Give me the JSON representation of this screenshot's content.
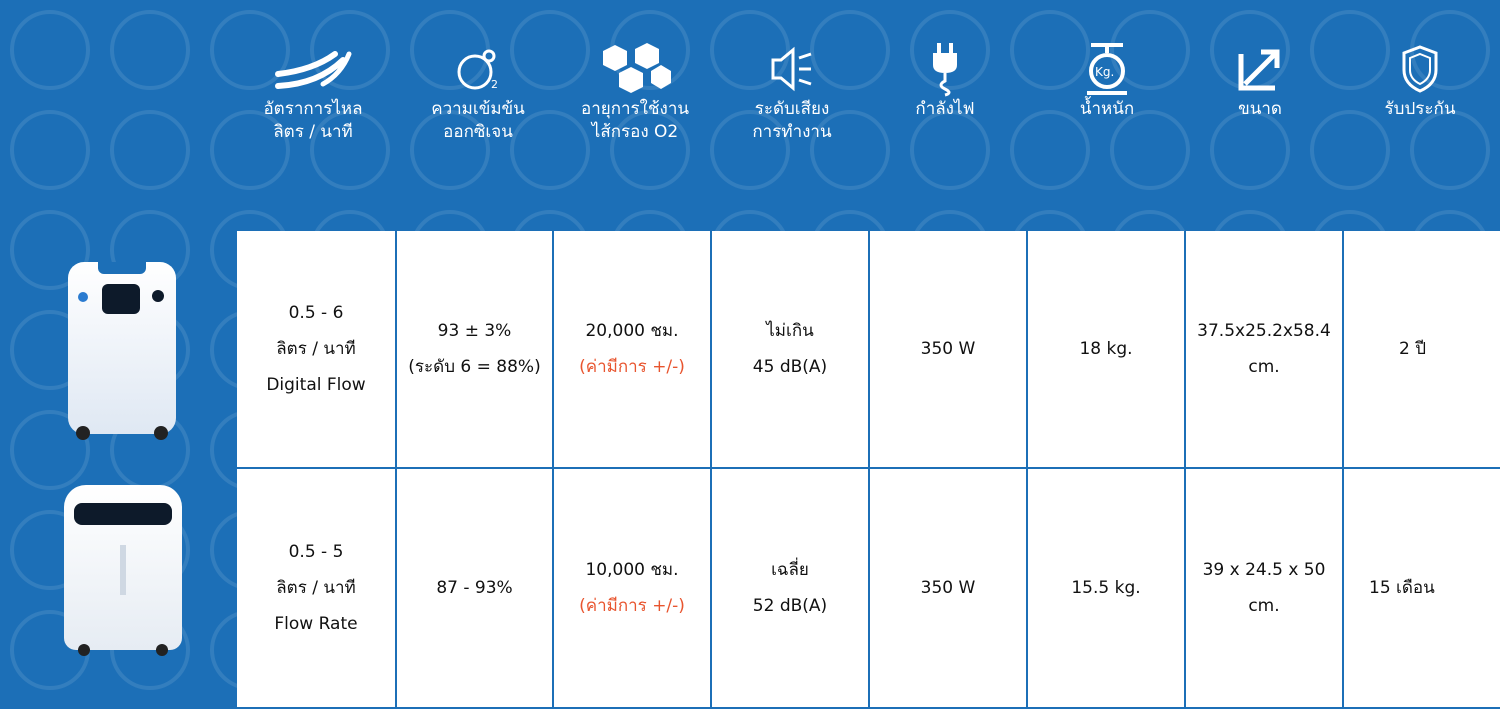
{
  "colors": {
    "background": "#1c6fb7",
    "cell": "#ffffff",
    "note": "#e8552f"
  },
  "header": {
    "columns": [
      {
        "icon": "air-flow-icon",
        "label_1": "อัตราการไหล",
        "label_2": "ลิตร / นาที"
      },
      {
        "icon": "o2-concentration-icon",
        "label_1": "ความเข้มข้น",
        "label_2": "ออกซิเจน"
      },
      {
        "icon": "filter-life-icon",
        "label_1": "อายุการใช้งาน",
        "label_2": "ไส้กรอง O2"
      },
      {
        "icon": "speaker-icon",
        "label_1": "ระดับเสียง",
        "label_2": "การทำงาน"
      },
      {
        "icon": "power-plug-icon",
        "label_1": "กำลังไฟ",
        "label_2": ""
      },
      {
        "icon": "weight-icon",
        "label_1": "น้ำหนัก",
        "label_2": ""
      },
      {
        "icon": "size-arrow-icon",
        "label_1": "ขนาด",
        "label_2": ""
      },
      {
        "icon": "shield-icon",
        "label_1": "รับประกัน",
        "label_2": ""
      }
    ],
    "weight_badge": "Kg."
  },
  "rows": [
    {
      "flow_1": "0.5 - 6",
      "flow_2": "ลิตร / นาที",
      "flow_3": "Digital Flow",
      "conc_1": "93 ± 3%",
      "conc_2": "(ระดับ 6 = 88%)",
      "filter_1": "20,000 ชม.",
      "filter_2": "(ค่ามีการ +/-)",
      "noise_1": "ไม่เกิน",
      "noise_2": "45 dB(A)",
      "power": "350 W",
      "weight": "18 kg.",
      "size_1": "37.5x25.2x58.4",
      "size_2": "cm.",
      "warranty": "2 ปี"
    },
    {
      "flow_1": "0.5 - 5",
      "flow_2": "ลิตร / นาที",
      "flow_3": "Flow Rate",
      "conc_1": "87 - 93%",
      "conc_2": "",
      "filter_1": "10,000 ชม.",
      "filter_2": "(ค่ามีการ +/-)",
      "noise_1": "เฉลี่ย",
      "noise_2": "52 dB(A)",
      "power": "350 W",
      "weight": "15.5 kg.",
      "size_1": "39 x 24.5 x 50",
      "size_2": "cm.",
      "warranty": "15 เดือน"
    }
  ]
}
